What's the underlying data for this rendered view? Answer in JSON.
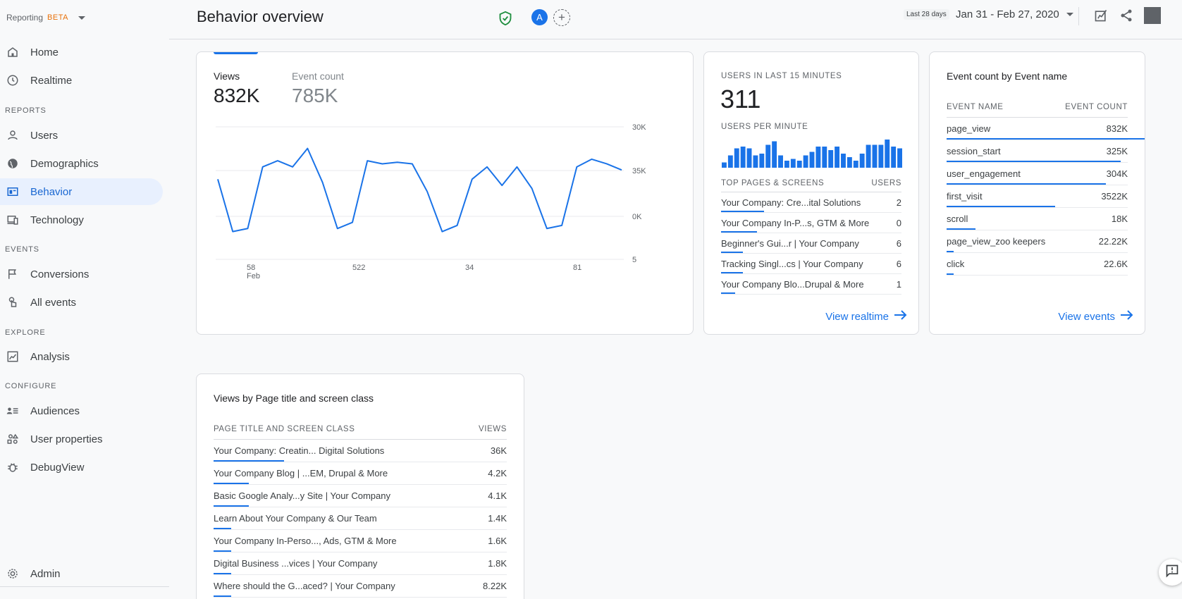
{
  "brand": {
    "label": "Reporting",
    "badge": "BETA"
  },
  "nav": {
    "home": "Home",
    "realtime": "Realtime",
    "reports_label": "REPORTS",
    "users": "Users",
    "demographics": "Demographics",
    "behavior": "Behavior",
    "technology": "Technology",
    "events_label": "EVENTS",
    "conversions": "Conversions",
    "all_events": "All events",
    "explore_label": "EXPLORE",
    "analysis": "Analysis",
    "configure_label": "CONFIGURE",
    "audiences": "Audiences",
    "user_properties": "User properties",
    "debugview": "DebugView",
    "admin": "Admin"
  },
  "header": {
    "title": "Behavior overview",
    "avatar_letter": "A",
    "range_label": "Last 28 days",
    "range_value": "Jan 31 - Feb 27, 2020"
  },
  "main_card": {
    "views_label": "Views",
    "views_value": "832K",
    "events_label": "Event count",
    "events_value": "785K"
  },
  "chart_data": {
    "type": "line",
    "y_tick_labels": [
      "30K",
      "35K",
      "0K",
      "5"
    ],
    "x_tick_labels": [
      "58",
      "522",
      "34",
      "81"
    ],
    "x_sub_label": "Feb",
    "grid": true,
    "series": [
      {
        "values": [
          31,
          14,
          15,
          35,
          37,
          35,
          41,
          30,
          15,
          17,
          37,
          36,
          36.5,
          36,
          27,
          14,
          16,
          31,
          35,
          29,
          35,
          28,
          15,
          16,
          35,
          37.5,
          36,
          34
        ]
      }
    ],
    "ylim": [
      5,
      48
    ],
    "color": "#1a73e8"
  },
  "realtime": {
    "users_label": "USERS IN LAST 15 MINUTES",
    "users_value": "311",
    "per_minute_label": "USERS PER MINUTE",
    "per_minute": [
      3,
      7,
      11,
      12,
      11,
      7,
      8,
      13,
      15,
      7,
      4,
      5,
      4,
      7,
      9,
      12,
      12,
      10,
      12,
      8,
      6,
      4,
      8,
      13,
      13,
      13,
      16,
      12,
      11
    ],
    "pages_header": "TOP PAGES & SCREENS",
    "users_header": "USERS",
    "pages": [
      {
        "name": "Your Company: Cre...ital Solutions",
        "value": "2",
        "share": 0.06
      },
      {
        "name": "Your Company In-P...s, GTM & More",
        "value": "0",
        "share": 0.05
      },
      {
        "name": "Beginner's Gui...r | Your Company",
        "value": "6",
        "share": 0.03
      },
      {
        "name": "Tracking Singl...cs | Your Company",
        "value": "6",
        "share": 0.03
      },
      {
        "name": "Your Company Blo...Drupal & More",
        "value": "1",
        "share": 0.02
      }
    ],
    "link": "View realtime"
  },
  "events": {
    "title": "Event count by Event name",
    "col_name": "EVENT NAME",
    "col_count": "EVENT COUNT",
    "rows": [
      {
        "name": "page_view",
        "value": "832K",
        "share": 0.3
      },
      {
        "name": "session_start",
        "value": "325K",
        "share": 0.24
      },
      {
        "name": "user_engagement",
        "value": "304K",
        "share": 0.22
      },
      {
        "name": "first_visit",
        "value": "3522K",
        "share": 0.15
      },
      {
        "name": "scroll",
        "value": "18K",
        "share": 0.04
      },
      {
        "name": "page_view_zoo keepers",
        "value": "22.22K",
        "share": 0.01
      },
      {
        "name": "click",
        "value": "22.6K",
        "share": 0.01
      }
    ],
    "link": "View events"
  },
  "pages_card": {
    "title": "Views by Page title and screen class",
    "col_name": "PAGE TITLE AND SCREEN CLASS",
    "col_views": "VIEWS",
    "rows": [
      {
        "name": "Your Company: Creatin... Digital Solutions",
        "value": "36K",
        "share": 0.06
      },
      {
        "name": "Your Company Blog | ...EM, Drupal & More",
        "value": "4.2K",
        "share": 0.03
      },
      {
        "name": "Basic Google Analy...y Site | Your Company",
        "value": "4.1K",
        "share": 0.03
      },
      {
        "name": "Learn About Your Company & Our Team",
        "value": "1.4K",
        "share": 0.015
      },
      {
        "name": "Your Company In-Perso..., Ads, GTM & More",
        "value": "1.6K",
        "share": 0.015
      },
      {
        "name": "Digital Business ...vices | Your Company",
        "value": "1.8K",
        "share": 0.015
      },
      {
        "name": "Where should the G...aced? | Your Company",
        "value": "8.22K",
        "share": 0.015
      }
    ]
  }
}
